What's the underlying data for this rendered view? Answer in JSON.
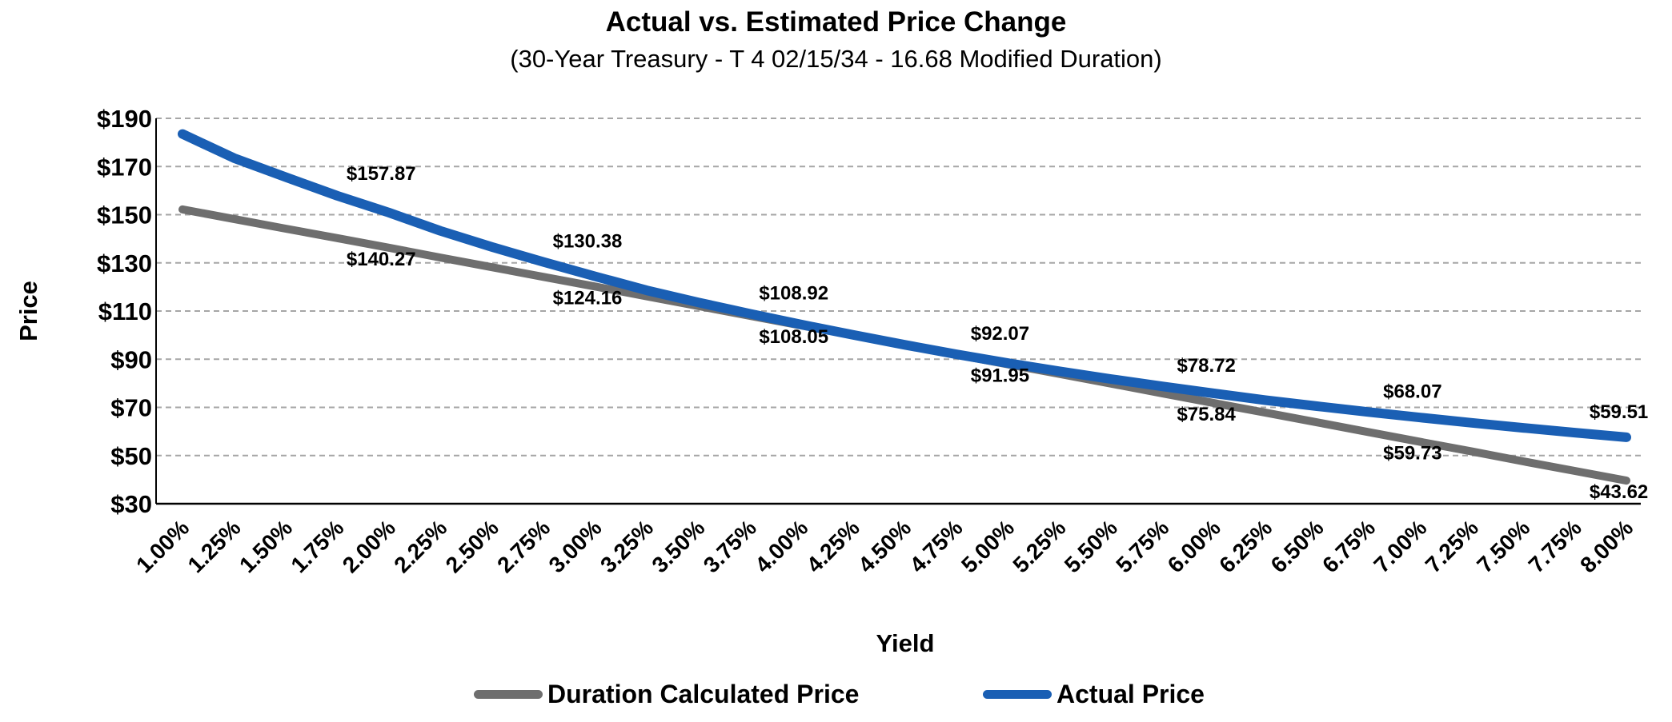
{
  "chart_data": {
    "type": "line",
    "title": "Actual vs. Estimated Price Change",
    "subtitle": "(30-Year Treasury - T 4 02/15/34 - 16.68 Modified Duration)",
    "xlabel": "Yield",
    "ylabel": "Price",
    "categories": [
      "1.00%",
      "1.25%",
      "1.50%",
      "1.75%",
      "2.00%",
      "2.25%",
      "2.50%",
      "2.75%",
      "3.00%",
      "3.25%",
      "3.50%",
      "3.75%",
      "4.00%",
      "4.25%",
      "4.50%",
      "4.75%",
      "5.00%",
      "5.25%",
      "5.50%",
      "5.75%",
      "6.00%",
      "6.25%",
      "6.50%",
      "6.75%",
      "7.00%",
      "7.25%",
      "7.50%",
      "7.75%",
      "8.00%"
    ],
    "y_ticks": [
      "$190",
      "$170",
      "$150",
      "$130",
      "$110",
      "$90",
      "$70",
      "$50",
      "$30"
    ],
    "ylim": [
      30,
      190
    ],
    "grid": true,
    "legend_position": "bottom",
    "series": [
      {
        "name": "Duration Calculated Price",
        "color": "#6e6e6e",
        "values": [
          152.2,
          148.2,
          144.2,
          140.27,
          136.3,
          132.2,
          128.2,
          124.16,
          120.2,
          116.1,
          112.1,
          108.05,
          104.0,
          100.0,
          96.0,
          91.95,
          87.9,
          83.9,
          79.9,
          75.84,
          71.8,
          67.8,
          63.8,
          59.73,
          55.7,
          51.7,
          47.6,
          43.62,
          39.6
        ]
      },
      {
        "name": "Actual Price",
        "color": "#1a5fb4",
        "values": [
          183.5,
          173.5,
          165.6,
          157.87,
          150.9,
          143.3,
          136.6,
          130.38,
          124.4,
          118.6,
          113.6,
          108.92,
          104.4,
          100.1,
          96.0,
          92.07,
          88.4,
          85.0,
          81.8,
          78.72,
          75.8,
          73.0,
          70.5,
          68.07,
          65.8,
          63.6,
          61.5,
          59.51,
          57.6
        ]
      }
    ],
    "data_labels": [
      {
        "series": 0,
        "index": 3,
        "text": "$140.27"
      },
      {
        "series": 0,
        "index": 7,
        "text": "$124.16"
      },
      {
        "series": 0,
        "index": 11,
        "text": "$108.05"
      },
      {
        "series": 0,
        "index": 15,
        "text": "$91.95"
      },
      {
        "series": 0,
        "index": 19,
        "text": "$75.84"
      },
      {
        "series": 0,
        "index": 23,
        "text": "$59.73"
      },
      {
        "series": 0,
        "index": 27,
        "text": "$43.62"
      },
      {
        "series": 1,
        "index": 3,
        "text": "$157.87"
      },
      {
        "series": 1,
        "index": 7,
        "text": "$130.38"
      },
      {
        "series": 1,
        "index": 11,
        "text": "$108.92"
      },
      {
        "series": 1,
        "index": 15,
        "text": "$92.07"
      },
      {
        "series": 1,
        "index": 19,
        "text": "$78.72"
      },
      {
        "series": 1,
        "index": 23,
        "text": "$68.07"
      },
      {
        "series": 1,
        "index": 27,
        "text": "$59.51"
      }
    ]
  }
}
